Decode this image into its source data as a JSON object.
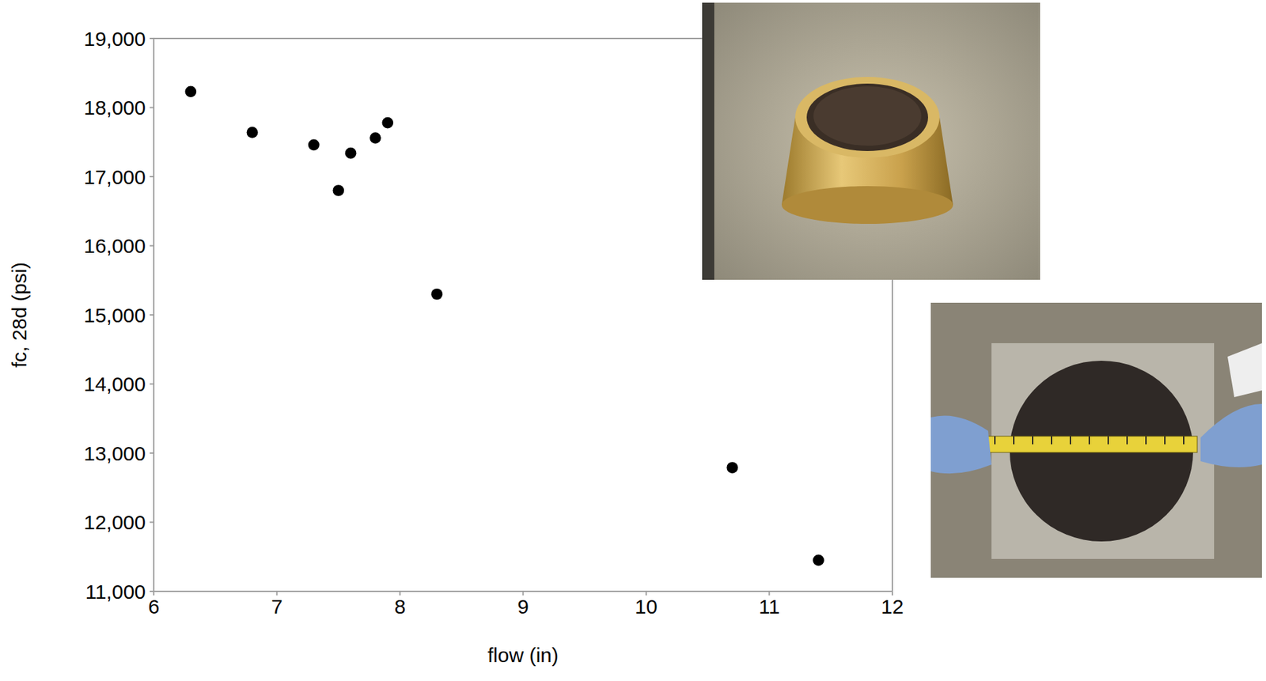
{
  "chart_data": {
    "type": "scatter",
    "x_label": "flow (in)",
    "y_label": "fc, 28d (psi)",
    "x": [
      6.3,
      6.8,
      7.3,
      7.5,
      7.6,
      7.8,
      7.9,
      8.3,
      10.7,
      11.4
    ],
    "values": [
      18230,
      17640,
      17460,
      16800,
      17340,
      17560,
      17780,
      15300,
      12790,
      11450
    ],
    "color": "#000000",
    "marker": "circle",
    "grid": false,
    "xlim": [
      6,
      12
    ],
    "xticks": [
      6,
      7,
      8,
      9,
      10,
      11,
      12
    ],
    "ylim": [
      11000,
      19000
    ],
    "yticks": [
      {
        "value": 11000,
        "label": "11,000"
      },
      {
        "value": 12000,
        "label": "12,000"
      },
      {
        "value": 13000,
        "label": "13,000"
      },
      {
        "value": 14000,
        "label": "14,000"
      },
      {
        "value": 15000,
        "label": "15,000"
      },
      {
        "value": 16000,
        "label": "16,000"
      },
      {
        "value": 17000,
        "label": "17,000"
      },
      {
        "value": 18000,
        "label": "18,000"
      },
      {
        "value": 19000,
        "label": "19,000"
      }
    ]
  }
}
